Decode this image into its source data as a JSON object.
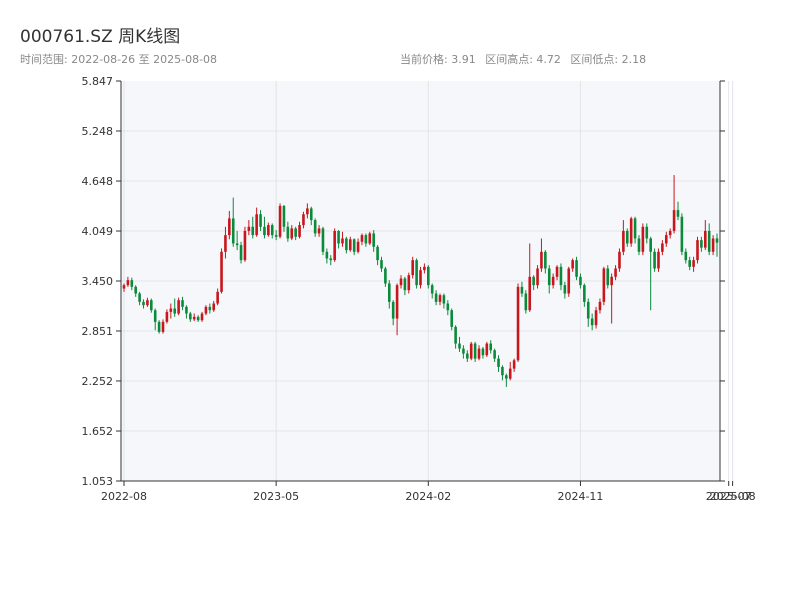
{
  "header": {
    "title": "000761.SZ 周K线图",
    "range_label": "时间范围: 2022-08-26 至 2025-08-08",
    "current_price": "当前价格: 3.91",
    "range_high": "区间高点: 4.72",
    "range_low": "区间低点: 2.18"
  },
  "colors": {
    "up": "#c8161d",
    "down": "#0a8a3a",
    "plot_bg": "#f6f7fa",
    "axis": "#333333",
    "grid": "#e2e4ea"
  },
  "chart_data": {
    "type": "candlestick",
    "title": "000761.SZ 周K线图",
    "xlabel": "",
    "ylabel": "",
    "ylim": [
      1.053,
      5.847
    ],
    "yticks": [
      "1.053",
      "1.652",
      "2.252",
      "2.851",
      "3.450",
      "4.049",
      "4.648",
      "5.248",
      "5.847"
    ],
    "xticks": [
      "2022-08",
      "2023-05",
      "2024-02",
      "2024-11",
      "2025-07",
      "2025-08"
    ],
    "xtick_index": [
      0,
      39,
      78,
      117,
      155,
      156
    ],
    "grid": true,
    "candles": [
      [
        3.36,
        3.4,
        3.32,
        3.42
      ],
      [
        3.4,
        3.46,
        3.38,
        3.5
      ],
      [
        3.46,
        3.38,
        3.34,
        3.49
      ],
      [
        3.38,
        3.3,
        3.26,
        3.4
      ],
      [
        3.3,
        3.2,
        3.16,
        3.32
      ],
      [
        3.2,
        3.16,
        3.12,
        3.23
      ],
      [
        3.16,
        3.22,
        3.14,
        3.25
      ],
      [
        3.22,
        3.1,
        3.07,
        3.24
      ],
      [
        3.1,
        2.96,
        2.86,
        3.12
      ],
      [
        2.96,
        2.84,
        2.82,
        2.98
      ],
      [
        2.84,
        2.96,
        2.82,
        2.99
      ],
      [
        2.96,
        3.08,
        2.94,
        3.11
      ],
      [
        3.08,
        3.12,
        3.0,
        3.18
      ],
      [
        3.12,
        3.06,
        3.02,
        3.24
      ],
      [
        3.06,
        3.22,
        3.04,
        3.25
      ],
      [
        3.22,
        3.14,
        3.1,
        3.26
      ],
      [
        3.14,
        3.06,
        3.0,
        3.16
      ],
      [
        3.06,
        2.99,
        2.96,
        3.08
      ],
      [
        2.99,
        3.02,
        2.97,
        3.06
      ],
      [
        3.02,
        2.98,
        2.96,
        3.04
      ],
      [
        2.98,
        3.06,
        2.96,
        3.08
      ],
      [
        3.06,
        3.14,
        3.04,
        3.16
      ],
      [
        3.14,
        3.1,
        3.06,
        3.18
      ],
      [
        3.1,
        3.18,
        3.08,
        3.21
      ],
      [
        3.18,
        3.32,
        3.16,
        3.36
      ],
      [
        3.32,
        3.8,
        3.3,
        3.84
      ],
      [
        3.8,
        4.0,
        3.72,
        4.1
      ],
      [
        4.0,
        4.2,
        3.95,
        4.29
      ],
      [
        4.2,
        3.9,
        3.86,
        4.45
      ],
      [
        3.9,
        3.88,
        3.82,
        4.05
      ],
      [
        3.88,
        3.7,
        3.66,
        3.92
      ],
      [
        3.7,
        4.05,
        3.68,
        4.1
      ],
      [
        4.05,
        4.1,
        4.0,
        4.18
      ],
      [
        4.1,
        4.0,
        3.96,
        4.22
      ],
      [
        4.0,
        4.25,
        3.98,
        4.33
      ],
      [
        4.25,
        4.1,
        4.05,
        4.3
      ],
      [
        4.1,
        4.0,
        3.96,
        4.22
      ],
      [
        4.0,
        4.12,
        3.98,
        4.15
      ],
      [
        4.12,
        4.0,
        3.96,
        4.14
      ],
      [
        4.0,
        3.98,
        3.94,
        4.06
      ],
      [
        3.98,
        4.35,
        3.96,
        4.38
      ],
      [
        4.35,
        4.1,
        4.04,
        4.36
      ],
      [
        4.1,
        3.96,
        3.92,
        4.16
      ],
      [
        3.96,
        4.08,
        3.94,
        4.12
      ],
      [
        4.08,
        3.98,
        3.94,
        4.1
      ],
      [
        3.98,
        4.12,
        3.96,
        4.16
      ],
      [
        4.12,
        4.25,
        4.08,
        4.28
      ],
      [
        4.25,
        4.32,
        4.2,
        4.38
      ],
      [
        4.32,
        4.18,
        4.12,
        4.34
      ],
      [
        4.18,
        4.02,
        3.98,
        4.2
      ],
      [
        4.02,
        4.08,
        3.98,
        4.12
      ],
      [
        4.08,
        3.8,
        3.76,
        4.1
      ],
      [
        3.8,
        3.72,
        3.66,
        3.84
      ],
      [
        3.72,
        3.7,
        3.64,
        3.76
      ],
      [
        3.7,
        4.05,
        3.68,
        4.08
      ],
      [
        4.05,
        3.9,
        3.84,
        4.06
      ],
      [
        3.9,
        3.96,
        3.86,
        4.04
      ],
      [
        3.96,
        3.82,
        3.78,
        3.98
      ],
      [
        3.82,
        3.95,
        3.8,
        3.98
      ],
      [
        3.95,
        3.8,
        3.76,
        3.96
      ],
      [
        3.8,
        3.92,
        3.78,
        3.96
      ],
      [
        3.92,
        4.0,
        3.88,
        4.02
      ],
      [
        4.0,
        3.9,
        3.86,
        4.02
      ],
      [
        3.9,
        4.02,
        3.88,
        4.04
      ],
      [
        4.02,
        3.86,
        3.8,
        4.06
      ],
      [
        3.86,
        3.7,
        3.64,
        3.88
      ],
      [
        3.7,
        3.6,
        3.56,
        3.74
      ],
      [
        3.6,
        3.42,
        3.38,
        3.62
      ],
      [
        3.42,
        3.2,
        3.12,
        3.46
      ],
      [
        3.2,
        3.0,
        2.92,
        3.22
      ],
      [
        3.0,
        3.4,
        2.8,
        3.42
      ],
      [
        3.4,
        3.48,
        3.36,
        3.52
      ],
      [
        3.48,
        3.34,
        3.28,
        3.5
      ],
      [
        3.34,
        3.52,
        3.3,
        3.55
      ],
      [
        3.52,
        3.7,
        3.48,
        3.74
      ],
      [
        3.7,
        3.4,
        3.36,
        3.72
      ],
      [
        3.4,
        3.58,
        3.36,
        3.62
      ],
      [
        3.58,
        3.62,
        3.54,
        3.66
      ],
      [
        3.62,
        3.4,
        3.36,
        3.64
      ],
      [
        3.4,
        3.3,
        3.24,
        3.42
      ],
      [
        3.3,
        3.2,
        3.16,
        3.34
      ],
      [
        3.2,
        3.28,
        3.16,
        3.3
      ],
      [
        3.28,
        3.18,
        3.12,
        3.3
      ],
      [
        3.18,
        3.1,
        3.04,
        3.22
      ],
      [
        3.1,
        2.9,
        2.86,
        3.12
      ],
      [
        2.9,
        2.7,
        2.64,
        2.92
      ],
      [
        2.7,
        2.64,
        2.6,
        2.78
      ],
      [
        2.64,
        2.58,
        2.52,
        2.68
      ],
      [
        2.58,
        2.52,
        2.48,
        2.62
      ],
      [
        2.52,
        2.7,
        2.5,
        2.72
      ],
      [
        2.7,
        2.52,
        2.48,
        2.72
      ],
      [
        2.52,
        2.64,
        2.5,
        2.68
      ],
      [
        2.64,
        2.56,
        2.52,
        2.66
      ],
      [
        2.56,
        2.7,
        2.54,
        2.72
      ],
      [
        2.7,
        2.62,
        2.58,
        2.74
      ],
      [
        2.62,
        2.52,
        2.48,
        2.64
      ],
      [
        2.52,
        2.42,
        2.36,
        2.56
      ],
      [
        2.42,
        2.32,
        2.26,
        2.44
      ],
      [
        2.32,
        2.28,
        2.18,
        2.34
      ],
      [
        2.28,
        2.4,
        2.26,
        2.48
      ],
      [
        2.4,
        2.5,
        2.36,
        2.52
      ],
      [
        2.5,
        3.38,
        2.48,
        3.42
      ],
      [
        3.38,
        3.3,
        3.26,
        3.44
      ],
      [
        3.3,
        3.1,
        3.06,
        3.34
      ],
      [
        3.1,
        3.5,
        3.08,
        3.9
      ],
      [
        3.5,
        3.4,
        3.34,
        3.52
      ],
      [
        3.4,
        3.6,
        3.36,
        3.64
      ],
      [
        3.6,
        3.8,
        3.56,
        3.96
      ],
      [
        3.8,
        3.6,
        3.54,
        3.82
      ],
      [
        3.6,
        3.4,
        3.3,
        3.64
      ],
      [
        3.4,
        3.5,
        3.36,
        3.54
      ],
      [
        3.5,
        3.62,
        3.46,
        3.64
      ],
      [
        3.62,
        3.4,
        3.34,
        3.66
      ],
      [
        3.4,
        3.3,
        3.24,
        3.44
      ],
      [
        3.3,
        3.6,
        3.26,
        3.62
      ],
      [
        3.6,
        3.7,
        3.56,
        3.72
      ],
      [
        3.7,
        3.5,
        3.46,
        3.74
      ],
      [
        3.5,
        3.4,
        3.36,
        3.54
      ],
      [
        3.4,
        3.2,
        3.14,
        3.42
      ],
      [
        3.2,
        3.0,
        2.9,
        3.24
      ],
      [
        3.0,
        2.92,
        2.86,
        3.06
      ],
      [
        2.92,
        3.1,
        2.88,
        3.14
      ],
      [
        3.1,
        3.2,
        3.06,
        3.24
      ],
      [
        3.2,
        3.6,
        3.16,
        3.62
      ],
      [
        3.6,
        3.4,
        3.36,
        3.64
      ],
      [
        3.4,
        3.5,
        2.94,
        3.54
      ],
      [
        3.5,
        3.6,
        3.46,
        3.64
      ],
      [
        3.6,
        3.8,
        3.56,
        3.84
      ],
      [
        3.8,
        4.05,
        3.76,
        4.18
      ],
      [
        4.05,
        3.9,
        3.86,
        4.08
      ],
      [
        3.9,
        4.2,
        3.86,
        4.22
      ],
      [
        4.2,
        3.96,
        3.9,
        4.22
      ],
      [
        3.96,
        3.8,
        3.76,
        4.0
      ],
      [
        3.8,
        4.1,
        3.76,
        4.14
      ],
      [
        4.1,
        3.96,
        3.9,
        4.14
      ],
      [
        3.96,
        3.8,
        3.1,
        3.98
      ],
      [
        3.8,
        3.6,
        3.56,
        3.84
      ],
      [
        3.6,
        3.8,
        3.56,
        3.84
      ],
      [
        3.8,
        3.9,
        3.76,
        3.94
      ],
      [
        3.9,
        4.0,
        3.86,
        4.04
      ],
      [
        4.0,
        4.05,
        3.96,
        4.08
      ],
      [
        4.05,
        4.3,
        4.02,
        4.72
      ],
      [
        4.3,
        4.22,
        4.18,
        4.4
      ],
      [
        4.22,
        3.8,
        3.76,
        4.26
      ],
      [
        3.8,
        3.7,
        3.66,
        3.84
      ],
      [
        3.7,
        3.62,
        3.58,
        3.74
      ],
      [
        3.62,
        3.7,
        3.56,
        3.74
      ],
      [
        3.7,
        3.94,
        3.66,
        3.98
      ],
      [
        3.94,
        3.85,
        3.8,
        3.98
      ],
      [
        3.85,
        4.05,
        3.82,
        4.18
      ],
      [
        4.05,
        3.8,
        3.76,
        4.14
      ],
      [
        3.8,
        3.96,
        3.76,
        4.0
      ],
      [
        3.96,
        3.91,
        3.74,
        4.02
      ]
    ]
  }
}
